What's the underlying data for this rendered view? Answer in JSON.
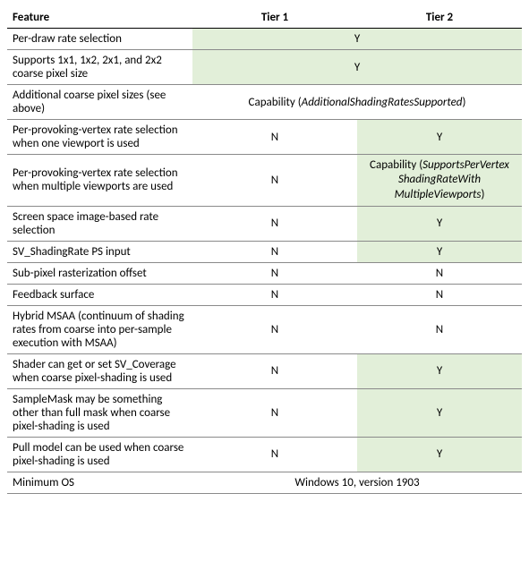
{
  "table": {
    "type": "table",
    "background_color": "#ffffff",
    "highlight_color": "#e2efd9",
    "border_color": "#8a8a8a",
    "header_border_color": "#000000",
    "font_family": "Calibri",
    "font_size_pt": 10,
    "header_font_weight": "bold",
    "columns": [
      {
        "key": "feature",
        "label": "Feature",
        "align": "left",
        "width_pct": 36
      },
      {
        "key": "tier1",
        "label": "Tier 1",
        "align": "center",
        "width_pct": 32
      },
      {
        "key": "tier2",
        "label": "Tier 2",
        "align": "center",
        "width_pct": 32
      }
    ],
    "rows": [
      {
        "feature": "Per-draw rate selection",
        "span": {
          "text": "Y",
          "highlight": true
        }
      },
      {
        "feature": "Supports 1x1, 1x2, 2x1, and 2x2 coarse pixel size",
        "span": {
          "text": "Y",
          "highlight": true
        }
      },
      {
        "feature": "Additional coarse pixel sizes (see above)",
        "span": {
          "prefix": "Capability (",
          "italic": "AdditionalShadingRatesSupported",
          "suffix": ")",
          "highlight": false
        }
      },
      {
        "feature": "Per-provoking-vertex rate selection when one viewport is used",
        "tier1": {
          "text": "N",
          "highlight": false
        },
        "tier2": {
          "text": "Y",
          "highlight": true
        }
      },
      {
        "feature": "Per-provoking-vertex rate selection when multiple viewports are used",
        "tier1": {
          "text": "N",
          "highlight": false
        },
        "tier2": {
          "prefix": "Capability (",
          "italic_lines": [
            "SupportsPerVertex",
            "ShadingRateWith",
            "MultipleViewports"
          ],
          "suffix": ")",
          "highlight": true
        }
      },
      {
        "feature": "Screen space image-based rate selection",
        "tier1": {
          "text": "N",
          "highlight": false
        },
        "tier2": {
          "text": "Y",
          "highlight": true
        }
      },
      {
        "feature": "SV_ShadingRate PS input",
        "tier1": {
          "text": "N",
          "highlight": false
        },
        "tier2": {
          "text": "Y",
          "highlight": true
        }
      },
      {
        "feature": "Sub-pixel rasterization offset",
        "tier1": {
          "text": "N",
          "highlight": false
        },
        "tier2": {
          "text": "N",
          "highlight": false
        }
      },
      {
        "feature": "Feedback surface",
        "tier1": {
          "text": "N",
          "highlight": false
        },
        "tier2": {
          "text": "N",
          "highlight": false
        }
      },
      {
        "feature": "Hybrid MSAA (continuum of shading rates from coarse into per-sample execution with MSAA)",
        "tier1": {
          "text": "N",
          "highlight": false
        },
        "tier2": {
          "text": "N",
          "highlight": false
        }
      },
      {
        "feature": "Shader can get or set SV_Coverage when coarse pixel-shading is used",
        "tier1": {
          "text": "N",
          "highlight": false
        },
        "tier2": {
          "text": "Y",
          "highlight": true
        }
      },
      {
        "feature": "SampleMask may be something other than full mask when coarse pixel-shading is used",
        "tier1": {
          "text": "N",
          "highlight": false
        },
        "tier2": {
          "text": "Y",
          "highlight": true
        }
      },
      {
        "feature": "Pull model can be used when coarse pixel-shading is used",
        "tier1": {
          "text": "N",
          "highlight": false
        },
        "tier2": {
          "text": "Y",
          "highlight": true
        }
      },
      {
        "feature": "Minimum OS",
        "span": {
          "text": "Windows 10, version 1903",
          "highlight": false
        }
      }
    ]
  }
}
